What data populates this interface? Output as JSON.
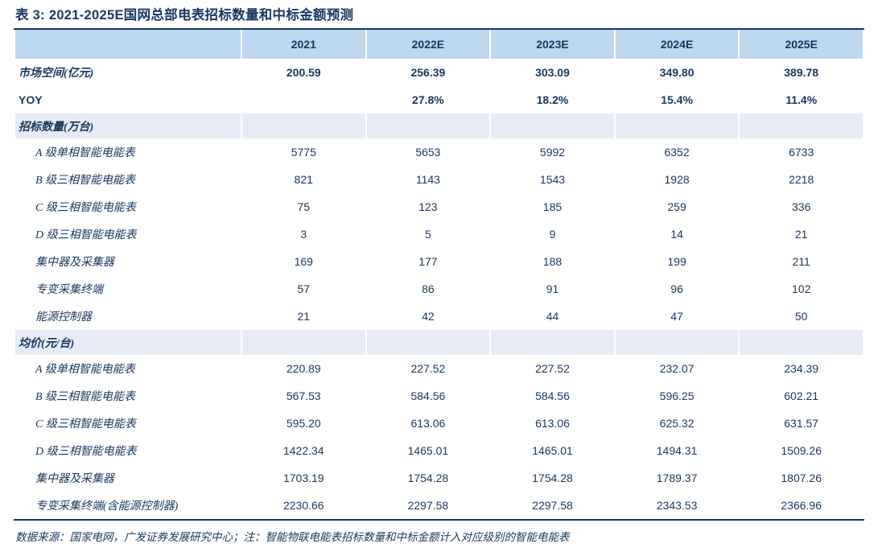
{
  "title": "表 3:  2021-2025E国网总部电表招标数量和中标金额预测",
  "footer_note": "数据来源：国家电网，广发证券发展研究中心；注：智能物联电能表招标数量和中标金额计入对应级别的智能电能表",
  "colors": {
    "text_navy": "#17375E",
    "header_band": "#BDD7EE",
    "section_band": "#E6EBF6",
    "rule": "#17375E"
  },
  "table": {
    "columns": [
      "2021",
      "2022E",
      "2023E",
      "2024E",
      "2025E"
    ],
    "rows": [
      {
        "label": "市场空间(亿元)",
        "values": [
          "200.59",
          "256.39",
          "303.09",
          "349.80",
          "389.78"
        ]
      },
      {
        "label": "YOY",
        "values": [
          "",
          "27.8%",
          "18.2%",
          "15.4%",
          "11.4%"
        ]
      },
      {
        "label": "招标数量(万台)",
        "values": [
          "",
          "",
          "",
          "",
          ""
        ]
      },
      {
        "label": "A 级单相智能电能表",
        "values": [
          "5775",
          "5653",
          "5992",
          "6352",
          "6733"
        ]
      },
      {
        "label": "B 级三相智能电能表",
        "values": [
          "821",
          "1143",
          "1543",
          "1928",
          "2218"
        ]
      },
      {
        "label": "C 级三相智能电能表",
        "values": [
          "75",
          "123",
          "185",
          "259",
          "336"
        ]
      },
      {
        "label": "D 级三相智能电能表",
        "values": [
          "3",
          "5",
          "9",
          "14",
          "21"
        ]
      },
      {
        "label": "集中器及采集器",
        "values": [
          "169",
          "177",
          "188",
          "199",
          "211"
        ]
      },
      {
        "label": "专变采集终端",
        "values": [
          "57",
          "86",
          "91",
          "96",
          "102"
        ]
      },
      {
        "label": "能源控制器",
        "values": [
          "21",
          "42",
          "44",
          "47",
          "50"
        ]
      },
      {
        "label": "均价(元/台)",
        "values": [
          "",
          "",
          "",
          "",
          ""
        ]
      },
      {
        "label": "A 级单相智能电能表",
        "values": [
          "220.89",
          "227.52",
          "227.52",
          "232.07",
          "234.39"
        ]
      },
      {
        "label": "B 级三相智能电能表",
        "values": [
          "567.53",
          "584.56",
          "584.56",
          "596.25",
          "602.21"
        ]
      },
      {
        "label": "C 级三相智能电能表",
        "values": [
          "595.20",
          "613.06",
          "613.06",
          "625.32",
          "631.57"
        ]
      },
      {
        "label": "D 级三相智能电能表",
        "values": [
          "1422.34",
          "1465.01",
          "1465.01",
          "1494.31",
          "1509.26"
        ]
      },
      {
        "label": "集中器及采集器",
        "values": [
          "1703.19",
          "1754.28",
          "1754.28",
          "1789.37",
          "1807.26"
        ]
      },
      {
        "label": "专变采集终端(含能源控制器)",
        "values": [
          "2230.66",
          "2297.58",
          "2297.58",
          "2343.53",
          "2366.96"
        ]
      }
    ]
  }
}
